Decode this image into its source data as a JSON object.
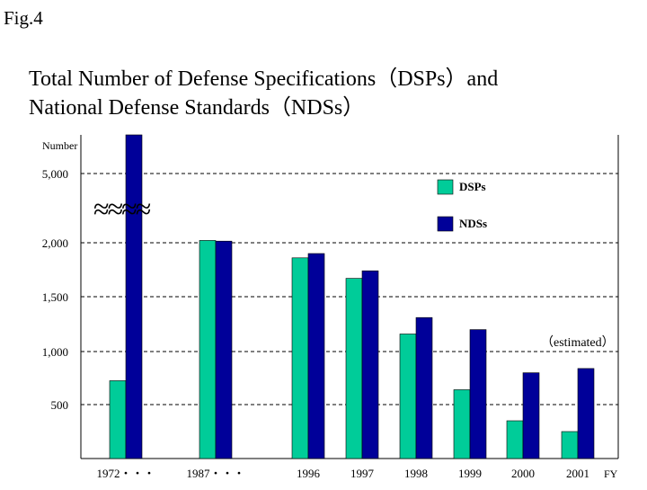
{
  "figure_label": "Fig.4",
  "title_line1": "Total Number of Defense Specifications（DSPs）and",
  "title_line2": "National Defense Standards（NDSs）",
  "chart_data": {
    "type": "bar",
    "title": "Total Number of Defense Specifications（DSPs）and National Defense Standards（NDSs）",
    "ylabel": "Number",
    "xlabel": "FY",
    "y_axis": "broken (break between 2,000 and 5,000)",
    "grid": "dashed horizontal",
    "legend_position": "top-right",
    "categories": [
      "1972・・・",
      "1987・・・",
      "1996",
      "1997",
      "1998",
      "1999",
      "2000",
      "2001"
    ],
    "y_ticks": [
      {
        "label": "5,000",
        "value": 5000
      },
      {
        "label": "2,000",
        "value": 2000
      },
      {
        "label": "1,500",
        "value": 1500
      },
      {
        "label": "1,000",
        "value": 1000
      },
      {
        "label": "500",
        "value": 500
      }
    ],
    "break_symbol": "≈≈≈≈",
    "annotation": "（estimated）",
    "series": [
      {
        "name": "DSPs",
        "color": "#00cc99",
        "values": [
          725,
          2100,
          1860,
          1670,
          1160,
          640,
          350,
          250
        ]
      },
      {
        "name": "NDSs",
        "color": "#000099",
        "values": [
          5500,
          2070,
          1900,
          1740,
          1310,
          1200,
          800,
          840
        ]
      }
    ]
  },
  "colors": {
    "dsp": "#00cc99",
    "nds": "#000099",
    "grid": "#000000"
  }
}
